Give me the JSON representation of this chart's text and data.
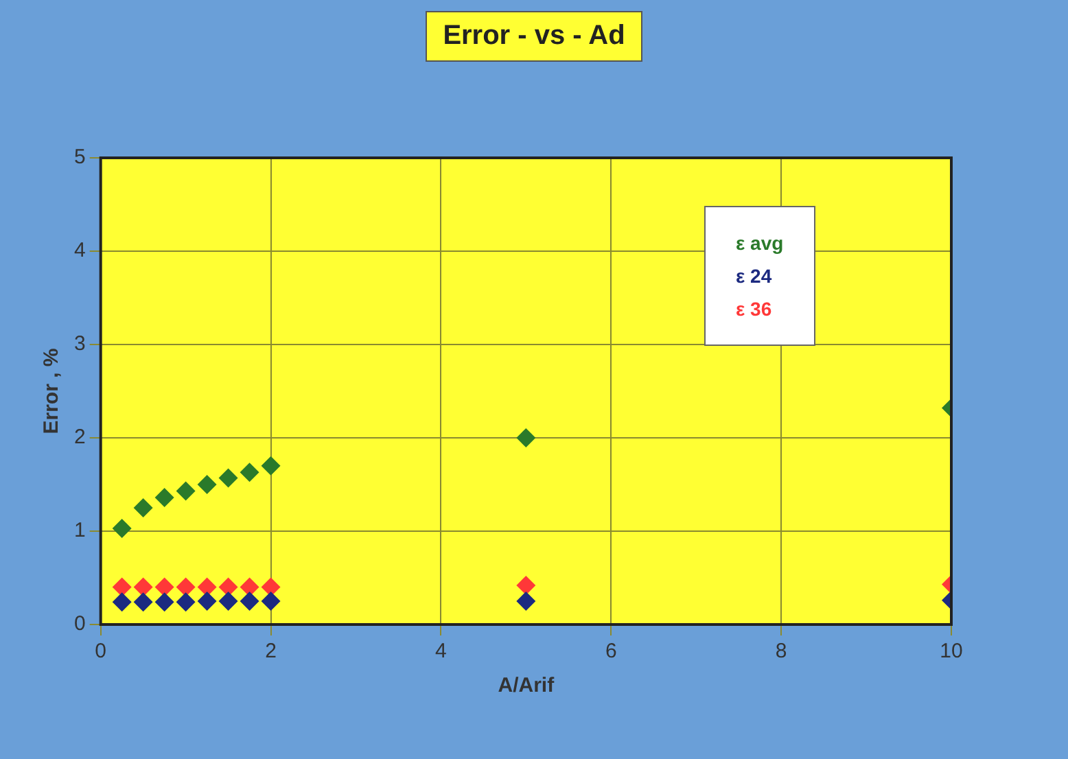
{
  "chart_data": {
    "type": "scatter",
    "title": "Error - vs - Ad",
    "xlabel": "A/Arif",
    "ylabel": "Error , %",
    "x": [
      0.25,
      0.5,
      0.75,
      1,
      1.25,
      1.5,
      1.75,
      2,
      5,
      10
    ],
    "series": [
      {
        "name": "ε avg",
        "color": "#2a7a2a",
        "values": [
          1.03,
          1.25,
          1.36,
          1.43,
          1.5,
          1.57,
          1.63,
          1.7,
          2.0,
          2.32
        ]
      },
      {
        "name": "ε 24",
        "color": "#1c2a80",
        "values": [
          0.24,
          0.24,
          0.24,
          0.24,
          0.25,
          0.25,
          0.25,
          0.25,
          0.25,
          0.26
        ]
      },
      {
        "name": "ε 36",
        "color": "#ff3838",
        "values": [
          0.4,
          0.4,
          0.4,
          0.4,
          0.4,
          0.4,
          0.4,
          0.4,
          0.42,
          0.43
        ]
      }
    ],
    "xlim": [
      0,
      10
    ],
    "xticks": [
      0,
      2,
      4,
      6,
      8,
      10
    ],
    "ylim": [
      0,
      5
    ],
    "yticks": [
      0,
      1,
      2,
      3,
      4,
      5
    ],
    "grid": true,
    "legend": "top right",
    "marker": "diamond"
  }
}
